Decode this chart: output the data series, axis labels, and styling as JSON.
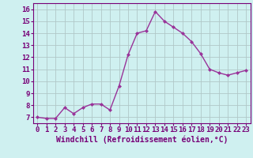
{
  "hours": [
    0,
    1,
    2,
    3,
    4,
    5,
    6,
    7,
    8,
    9,
    10,
    11,
    12,
    13,
    14,
    15,
    16,
    17,
    18,
    19,
    20,
    21,
    22,
    23
  ],
  "values": [
    7.0,
    6.9,
    6.9,
    7.8,
    7.3,
    7.8,
    8.1,
    8.1,
    7.6,
    9.6,
    12.2,
    14.0,
    14.2,
    15.8,
    15.0,
    14.5,
    14.0,
    13.3,
    12.3,
    11.0,
    10.7,
    10.5,
    10.7,
    10.9
  ],
  "line_color": "#993399",
  "marker": "D",
  "marker_size": 2.0,
  "line_width": 1.0,
  "xlabel": "Windchill (Refroidissement éolien,°C)",
  "xlim": [
    -0.5,
    23.5
  ],
  "ylim": [
    6.5,
    16.5
  ],
  "yticks": [
    7,
    8,
    9,
    10,
    11,
    12,
    13,
    14,
    15,
    16
  ],
  "xticks": [
    0,
    1,
    2,
    3,
    4,
    5,
    6,
    7,
    8,
    9,
    10,
    11,
    12,
    13,
    14,
    15,
    16,
    17,
    18,
    19,
    20,
    21,
    22,
    23
  ],
  "bg_color": "#cff0f0",
  "grid_color": "#b0c8c8",
  "tick_label_fontsize": 6.5,
  "xlabel_fontsize": 7.0,
  "label_color": "#770077"
}
